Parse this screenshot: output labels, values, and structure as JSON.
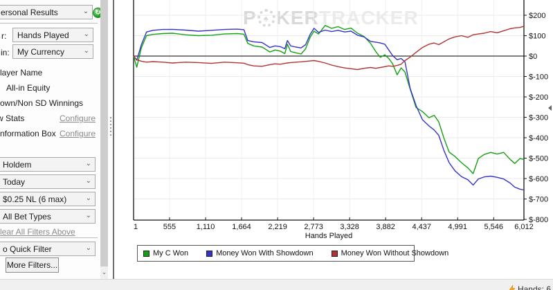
{
  "sidebar": {
    "report_selector": {
      "value": "ersonal Results"
    },
    "refresh_icon": "green-go-refresh-icon",
    "graph_over": {
      "label": "r:",
      "value": "Hands Played"
    },
    "display_in": {
      "label": "in:",
      "value": "My Currency"
    },
    "options": [
      {
        "label": "layer Name"
      },
      {
        "label": "All-in Equity"
      },
      {
        "label": "own/Non SD Winnings"
      },
      {
        "label": "w Stats",
        "action": "Configure"
      },
      {
        "label": "nformation Box",
        "action": "Configure"
      }
    ],
    "filters": [
      {
        "value": "Holdem"
      },
      {
        "value": "Today"
      },
      {
        "value": "$0.25 NL (6 max)"
      },
      {
        "value": " All Bet Types"
      }
    ],
    "clear_filters_link": "lear All Filters Above",
    "quick_filter": {
      "value": "o Quick Filter"
    },
    "more_filters_button": "More Filters..."
  },
  "watermark": {
    "p": "P",
    "chip": "♠",
    "ker": "KER",
    "tracker": "TRACKER"
  },
  "status_bar": {
    "hands_text": "Hands: 6"
  },
  "chart_data": {
    "type": "line",
    "title": "",
    "xlabel": "Hands Played",
    "ylabel": "",
    "xlim": [
      1,
      6012
    ],
    "ylim": [
      -800,
      274
    ],
    "grid": true,
    "legend_position": "bottom",
    "x_ticks": {
      "values": [
        1,
        555,
        1110,
        1664,
        2219,
        2773,
        3328,
        3882,
        4437,
        4991,
        5546,
        6012
      ],
      "labels": [
        "1",
        "555",
        "1,110",
        "1,664",
        "2,219",
        "2,773",
        "3,328",
        "3,882",
        "4,437",
        "4,991",
        "5,546",
        "6,012"
      ]
    },
    "y_ticks": {
      "values": [
        200,
        100,
        0,
        -100,
        -200,
        -300,
        -400,
        -500,
        -600,
        -700,
        -800
      ],
      "labels": [
        "$200",
        "$100",
        "$0",
        "$-100",
        "$-200",
        "$-300",
        "$-400",
        "$-500",
        "$-600",
        "$-700",
        "$-800"
      ]
    },
    "x": [
      1,
      50,
      120,
      200,
      300,
      450,
      600,
      800,
      1000,
      1200,
      1400,
      1600,
      1700,
      1760,
      1850,
      1980,
      2100,
      2180,
      2260,
      2330,
      2370,
      2420,
      2500,
      2580,
      2650,
      2720,
      2780,
      2850,
      2950,
      3050,
      3150,
      3250,
      3350,
      3450,
      3550,
      3650,
      3730,
      3800,
      3870,
      3930,
      3990,
      4060,
      4120,
      4180,
      4260,
      4350,
      4450,
      4550,
      4630,
      4700,
      4780,
      4860,
      4950,
      5050,
      5150,
      5230,
      5310,
      5400,
      5500,
      5600,
      5700,
      5800,
      5870,
      5950,
      6012
    ],
    "series": [
      {
        "name": "My C Won",
        "color": "#12a012",
        "values": [
          0,
          -55,
          40,
          100,
          106,
          110,
          112,
          104,
          100,
          102,
          108,
          110,
          107,
          62,
          50,
          44,
          20,
          30,
          24,
          12,
          58,
          22,
          16,
          10,
          36,
          92,
          122,
          108,
          150,
          136,
          144,
          130,
          137,
          112,
          96,
          62,
          22,
          -6,
          6,
          -12,
          -38,
          -92,
          -58,
          -78,
          -162,
          -252,
          -272,
          -302,
          -290,
          -322,
          -402,
          -470,
          -492,
          -522,
          -548,
          -576,
          -502,
          -482,
          -472,
          -480,
          -472,
          -506,
          -526,
          -502,
          -506
        ]
      },
      {
        "name": "Money Won With Showdown",
        "color": "#3434c8",
        "values": [
          0,
          -20,
          55,
          118,
          126,
          130,
          131,
          127,
          122,
          126,
          130,
          132,
          129,
          76,
          70,
          66,
          42,
          50,
          46,
          36,
          76,
          50,
          44,
          40,
          56,
          106,
          136,
          116,
          127,
          120,
          126,
          118,
          122,
          102,
          94,
          72,
          68,
          64,
          58,
          30,
          2,
          -18,
          -12,
          -28,
          -158,
          -242,
          -312,
          -342,
          -362,
          -388,
          -462,
          -522,
          -562,
          -590,
          -606,
          -632,
          -602,
          -592,
          -588,
          -594,
          -602,
          -622,
          -642,
          -652,
          -656
        ]
      },
      {
        "name": "Money Won Without Showdown",
        "color": "#b03232",
        "values": [
          0,
          -18,
          -25,
          -30,
          -27,
          -30,
          -34,
          -30,
          -32,
          -36,
          -30,
          -33,
          -35,
          -42,
          -48,
          -50,
          -42,
          -38,
          -40,
          -36,
          -34,
          -32,
          -30,
          -28,
          -26,
          -24,
          -22,
          -26,
          -34,
          -44,
          -52,
          -58,
          -62,
          -66,
          -60,
          -56,
          -60,
          -56,
          -52,
          -48,
          -50,
          -46,
          -40,
          -22,
          -5,
          18,
          42,
          58,
          64,
          56,
          70,
          84,
          94,
          100,
          92,
          104,
          108,
          112,
          120,
          114,
          124,
          134,
          138,
          140,
          146
        ]
      }
    ]
  }
}
